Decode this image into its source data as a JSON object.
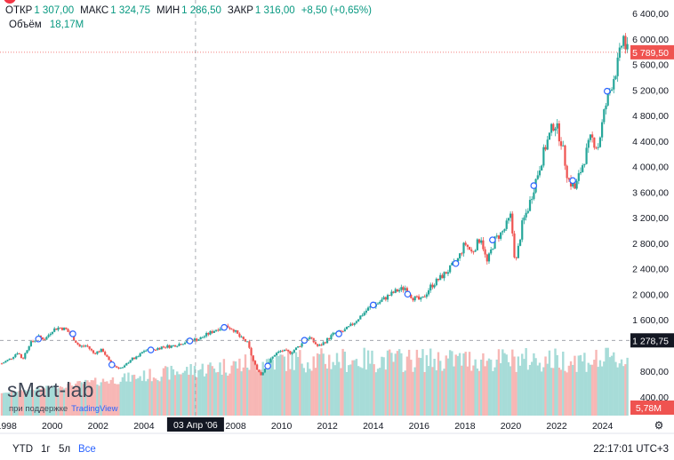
{
  "legend": {
    "open_label": "ОТКР",
    "open_value": "1 307,00",
    "high_label": "МАКС",
    "high_value": "1 324,75",
    "low_label": "МИН",
    "low_value": "1 286,50",
    "close_label": "ЗАКР",
    "close_value": "1 316,00",
    "change": "+8,50 (+0,65%)",
    "volume_label": "Объём",
    "volume_value": "18,17M"
  },
  "watermark": {
    "brand": "sMart-lab",
    "support_text": "при поддержке",
    "tv_name": "TradingView"
  },
  "timeframes": [
    "YTD",
    "1г",
    "5л",
    "Все"
  ],
  "active_timeframe": "Все",
  "clock": "22:17:01 UTC+3",
  "colors": {
    "up": "#26a69a",
    "down": "#ef5350",
    "text_up": "#089981",
    "accent": "#2962ff",
    "vol_up": "#a7dcd8",
    "vol_down": "#f7b7b5"
  },
  "chart_data": {
    "type": "candlestick",
    "title": "",
    "ylim": [
      400,
      6400
    ],
    "y_ticks": [
      {
        "value": 6400,
        "label": "6 400,00"
      },
      {
        "value": 6000,
        "label": "6 000,00"
      },
      {
        "value": 5600,
        "label": "5 600,00"
      },
      {
        "value": 5200,
        "label": "5 200,00"
      },
      {
        "value": 4800,
        "label": "4 800,00"
      },
      {
        "value": 4400,
        "label": "4 400,00"
      },
      {
        "value": 4000,
        "label": "4 000,00"
      },
      {
        "value": 3600,
        "label": "3 600,00"
      },
      {
        "value": 3200,
        "label": "3 200,00"
      },
      {
        "value": 2800,
        "label": "2 800,00"
      },
      {
        "value": 2400,
        "label": "2 400,00"
      },
      {
        "value": 2000,
        "label": "2 000,00"
      },
      {
        "value": 1600,
        "label": "1 600,00"
      },
      {
        "value": 800,
        "label": "800,00"
      },
      {
        "value": 400,
        "label": "400,00"
      }
    ],
    "xlim": [
      1997.8,
      2025.1
    ],
    "x_ticks": [
      {
        "value": 1998,
        "label": "1998"
      },
      {
        "value": 2000,
        "label": "2000"
      },
      {
        "value": 2002,
        "label": "2002"
      },
      {
        "value": 2004,
        "label": "2004"
      },
      {
        "value": 2008,
        "label": "2008"
      },
      {
        "value": 2010,
        "label": "2010"
      },
      {
        "value": 2012,
        "label": "2012"
      },
      {
        "value": 2014,
        "label": "2014"
      },
      {
        "value": 2016,
        "label": "2016"
      },
      {
        "value": 2018,
        "label": "2018"
      },
      {
        "value": 2020,
        "label": "2020"
      },
      {
        "value": 2022,
        "label": "2022"
      },
      {
        "value": 2024,
        "label": "2024"
      }
    ],
    "last_price": {
      "value": 5789.5,
      "label": "5 789,50"
    },
    "crosshair": {
      "x": 2006.25,
      "y": 1278.75,
      "x_label": "03 Апр '06",
      "y_label": "1 278,75"
    },
    "volume_label": "5,78M",
    "volume_max": 10,
    "series": [
      {
        "t": 1997.8,
        "v": 920
      },
      {
        "t": 1998.2,
        "v": 1000
      },
      {
        "t": 1998.5,
        "v": 1100
      },
      {
        "t": 1998.7,
        "v": 980
      },
      {
        "t": 1999.0,
        "v": 1220
      },
      {
        "t": 1999.4,
        "v": 1330
      },
      {
        "t": 1999.7,
        "v": 1300
      },
      {
        "t": 2000.0,
        "v": 1440
      },
      {
        "t": 2000.3,
        "v": 1480
      },
      {
        "t": 2000.6,
        "v": 1450
      },
      {
        "t": 2000.9,
        "v": 1320
      },
      {
        "t": 2001.2,
        "v": 1180
      },
      {
        "t": 2001.5,
        "v": 1200
      },
      {
        "t": 2001.8,
        "v": 1080
      },
      {
        "t": 2002.2,
        "v": 1130
      },
      {
        "t": 2002.5,
        "v": 940
      },
      {
        "t": 2002.8,
        "v": 860
      },
      {
        "t": 2003.1,
        "v": 850
      },
      {
        "t": 2003.4,
        "v": 980
      },
      {
        "t": 2003.7,
        "v": 1010
      },
      {
        "t": 2004.0,
        "v": 1120
      },
      {
        "t": 2004.4,
        "v": 1130
      },
      {
        "t": 2004.8,
        "v": 1180
      },
      {
        "t": 2005.2,
        "v": 1190
      },
      {
        "t": 2005.6,
        "v": 1230
      },
      {
        "t": 2006.0,
        "v": 1280
      },
      {
        "t": 2006.4,
        "v": 1300
      },
      {
        "t": 2006.8,
        "v": 1380
      },
      {
        "t": 2007.2,
        "v": 1460
      },
      {
        "t": 2007.6,
        "v": 1500
      },
      {
        "t": 2007.9,
        "v": 1450
      },
      {
        "t": 2008.2,
        "v": 1320
      },
      {
        "t": 2008.5,
        "v": 1250
      },
      {
        "t": 2008.8,
        "v": 920
      },
      {
        "t": 2009.1,
        "v": 740
      },
      {
        "t": 2009.4,
        "v": 920
      },
      {
        "t": 2009.7,
        "v": 1060
      },
      {
        "t": 2010.0,
        "v": 1120
      },
      {
        "t": 2010.4,
        "v": 1090
      },
      {
        "t": 2010.8,
        "v": 1200
      },
      {
        "t": 2011.2,
        "v": 1330
      },
      {
        "t": 2011.6,
        "v": 1180
      },
      {
        "t": 2011.9,
        "v": 1260
      },
      {
        "t": 2012.3,
        "v": 1390
      },
      {
        "t": 2012.7,
        "v": 1420
      },
      {
        "t": 2013.0,
        "v": 1500
      },
      {
        "t": 2013.4,
        "v": 1640
      },
      {
        "t": 2013.8,
        "v": 1780
      },
      {
        "t": 2014.2,
        "v": 1860
      },
      {
        "t": 2014.6,
        "v": 1960
      },
      {
        "t": 2015.0,
        "v": 2050
      },
      {
        "t": 2015.4,
        "v": 2100
      },
      {
        "t": 2015.7,
        "v": 1950
      },
      {
        "t": 2016.1,
        "v": 1900
      },
      {
        "t": 2016.5,
        "v": 2120
      },
      {
        "t": 2016.9,
        "v": 2250
      },
      {
        "t": 2017.3,
        "v": 2380
      },
      {
        "t": 2017.7,
        "v": 2550
      },
      {
        "t": 2018.0,
        "v": 2800
      },
      {
        "t": 2018.3,
        "v": 2650
      },
      {
        "t": 2018.7,
        "v": 2900
      },
      {
        "t": 2018.95,
        "v": 2480
      },
      {
        "t": 2019.3,
        "v": 2850
      },
      {
        "t": 2019.7,
        "v": 3000
      },
      {
        "t": 2020.0,
        "v": 3230
      },
      {
        "t": 2020.2,
        "v": 2450
      },
      {
        "t": 2020.5,
        "v": 3100
      },
      {
        "t": 2020.8,
        "v": 3400
      },
      {
        "t": 2021.1,
        "v": 3800
      },
      {
        "t": 2021.5,
        "v": 4300
      },
      {
        "t": 2021.9,
        "v": 4700
      },
      {
        "t": 2022.2,
        "v": 4400
      },
      {
        "t": 2022.5,
        "v": 3800
      },
      {
        "t": 2022.8,
        "v": 3650
      },
      {
        "t": 2023.1,
        "v": 4000
      },
      {
        "t": 2023.5,
        "v": 4450
      },
      {
        "t": 2023.8,
        "v": 4300
      },
      {
        "t": 2024.1,
        "v": 4900
      },
      {
        "t": 2024.4,
        "v": 5300
      },
      {
        "t": 2024.7,
        "v": 5650
      },
      {
        "t": 2024.9,
        "v": 6050
      },
      {
        "t": 2025.05,
        "v": 5790
      }
    ],
    "markers": [
      {
        "t": 1999.4,
        "v": 1300
      },
      {
        "t": 2000.9,
        "v": 1380
      },
      {
        "t": 2002.6,
        "v": 900
      },
      {
        "t": 2004.3,
        "v": 1130
      },
      {
        "t": 2006.0,
        "v": 1270
      },
      {
        "t": 2007.5,
        "v": 1480
      },
      {
        "t": 2009.4,
        "v": 880
      },
      {
        "t": 2011.0,
        "v": 1280
      },
      {
        "t": 2012.5,
        "v": 1380
      },
      {
        "t": 2014.0,
        "v": 1830
      },
      {
        "t": 2015.5,
        "v": 2000
      },
      {
        "t": 2017.6,
        "v": 2480
      },
      {
        "t": 2019.2,
        "v": 2850
      },
      {
        "t": 2021.0,
        "v": 3700
      },
      {
        "t": 2022.7,
        "v": 3780
      },
      {
        "t": 2024.2,
        "v": 5180
      }
    ]
  }
}
